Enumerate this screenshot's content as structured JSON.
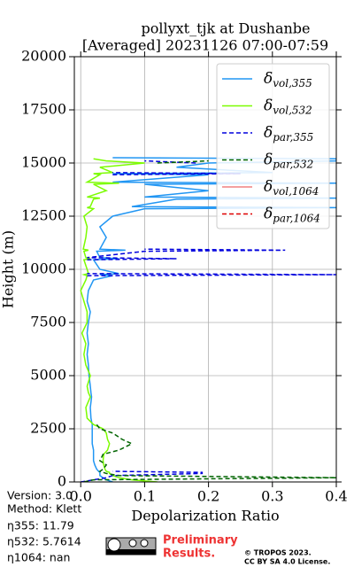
{
  "chart_data": {
    "type": "line",
    "title": "pollyxt_tjk at Dushanbe",
    "subtitle": "[Averaged] 20231126 07:00-07:59",
    "x_label": "Depolarization Ratio",
    "y_label": "Height (m)",
    "xlim": [
      -0.01,
      0.4
    ],
    "xticks": [
      0.0,
      0.1,
      0.2,
      0.3,
      0.4
    ],
    "ylim": [
      0,
      20000
    ],
    "yticks": [
      0,
      2500,
      5000,
      7500,
      10000,
      12500,
      15000,
      17500,
      20000
    ],
    "grid": true,
    "legend": "upper right",
    "y": [
      0,
      100,
      200,
      300,
      400,
      450,
      500,
      600,
      800,
      1000,
      1300,
      1500,
      1800,
      2000,
      2300,
      2500,
      2700,
      3000,
      3500,
      4000,
      4200,
      4500,
      5000,
      5500,
      6000,
      6500,
      7000,
      7500,
      8000,
      8500,
      9000,
      9500,
      9700,
      9750,
      9800,
      10000,
      10450,
      10500,
      10550,
      10850,
      10900,
      10950,
      11500,
      12000,
      12500,
      12850,
      12900,
      12950,
      13300,
      13350,
      13400,
      13700,
      14000,
      14050,
      14100,
      14450,
      14500,
      14550,
      14800,
      15000,
      15100,
      15200,
      15250
    ],
    "series": [
      {
        "name": "δvol,355",
        "color": "#2196f3",
        "linestyle": "solid",
        "values": [
          0.05,
          0.04,
          0.035,
          0.03,
          0.03,
          0.03,
          0.028,
          0.025,
          0.022,
          0.02,
          0.02,
          0.02,
          0.018,
          0.018,
          0.018,
          0.018,
          0.018,
          0.016,
          0.015,
          0.017,
          0.016,
          0.015,
          0.013,
          0.012,
          0.01,
          0.012,
          0.01,
          0.012,
          0.015,
          0.01,
          0.012,
          0.02,
          0.05,
          0.03,
          0.06,
          0.03,
          0.02,
          0.06,
          0.03,
          0.025,
          0.07,
          0.03,
          0.04,
          0.03,
          0.05,
          0.1,
          0.4,
          0.08,
          0.15,
          0.4,
          0.1,
          0.2,
          0.1,
          0.4,
          0.05,
          0.2,
          0.05,
          0.3,
          0.15,
          0.2,
          0.4,
          0.4,
          0.05
        ]
      },
      {
        "name": "δvol,532",
        "color": "#7cfc00",
        "linestyle": "solid",
        "values": [
          0.12,
          0.08,
          0.06,
          0.05,
          0.045,
          0.045,
          0.04,
          0.038,
          0.036,
          0.035,
          0.036,
          0.042,
          0.045,
          0.042,
          0.04,
          0.035,
          0.02,
          0.01,
          0.008,
          0.015,
          0.012,
          0.01,
          0.015,
          0.008,
          0.005,
          0.008,
          0.002,
          0.01,
          0.01,
          0.005,
          0.0,
          0.008,
          0.01,
          0.005,
          0.012,
          0.01,
          0.005,
          0.015,
          0.008,
          0.005,
          0.012,
          0.004,
          0.008,
          0.01,
          0.005,
          0.02,
          0.01,
          0.015,
          0.02,
          0.03,
          0.01,
          0.04,
          0.02,
          0.06,
          0.01,
          0.03,
          0.02,
          0.05,
          0.03,
          0.1,
          0.04,
          0.02,
          null
        ]
      },
      {
        "name": "δpar,355",
        "color": "#0000dd",
        "linestyle": "dashed",
        "values": [
          0.0,
          0.02,
          0.04,
          0.05,
          0.19,
          0.19,
          0.05,
          null,
          null,
          null,
          null,
          null,
          null,
          null,
          null,
          null,
          null,
          null,
          null,
          null,
          null,
          null,
          null,
          null,
          null,
          null,
          null,
          null,
          null,
          null,
          null,
          null,
          0.01,
          0.4,
          0.01,
          null,
          0.01,
          0.15,
          0.01,
          0.1,
          0.32,
          0.1,
          null,
          null,
          null,
          null,
          null,
          null,
          null,
          null,
          null,
          null,
          null,
          null,
          null,
          0.05,
          0.25,
          0.05,
          null,
          0.18,
          0.1,
          null,
          null
        ]
      },
      {
        "name": "δpar,532",
        "color": "#006400",
        "linestyle": "dashed",
        "values": [
          0.005,
          0.02,
          0.4,
          0.06,
          0.04,
          0.035,
          0.03,
          0.035,
          0.04,
          0.03,
          0.035,
          0.06,
          0.08,
          0.065,
          0.05,
          0.03,
          0.025,
          null,
          null,
          null,
          null,
          null,
          null,
          null,
          null,
          null,
          null,
          null,
          null,
          null,
          null,
          null,
          null,
          null,
          null,
          null,
          null,
          null,
          null,
          null,
          null,
          null,
          null,
          null,
          null,
          null,
          null,
          null,
          null,
          null,
          null,
          null,
          null,
          null,
          null,
          null,
          null,
          null,
          null,
          0.12,
          0.2,
          null,
          null
        ]
      },
      {
        "name": "δvol,1064",
        "color": "#f08080",
        "linestyle": "solid",
        "values": [
          null,
          null,
          null,
          null,
          null,
          null,
          null,
          null,
          null,
          null,
          null,
          null,
          null,
          null,
          null,
          null,
          null,
          null,
          null,
          null,
          null,
          null,
          null,
          null,
          null,
          null,
          null,
          null,
          null,
          null,
          null,
          null,
          null,
          null,
          null,
          null,
          null,
          null,
          null,
          null,
          null,
          null,
          null,
          null,
          null,
          null,
          null,
          null,
          null,
          null,
          null,
          null,
          null,
          null,
          null,
          null,
          null,
          null,
          null,
          null,
          null,
          null,
          null
        ]
      },
      {
        "name": "δpar,1064",
        "color": "#dd0000",
        "linestyle": "dashed",
        "values": [
          null,
          null,
          null,
          null,
          null,
          null,
          null,
          null,
          null,
          null,
          null,
          null,
          null,
          null,
          null,
          null,
          null,
          null,
          null,
          null,
          null,
          null,
          null,
          null,
          null,
          null,
          null,
          null,
          null,
          null,
          null,
          null,
          null,
          null,
          null,
          null,
          null,
          null,
          null,
          null,
          null,
          null,
          null,
          null,
          null,
          null,
          null,
          null,
          null,
          null,
          null,
          null,
          null,
          null,
          null,
          null,
          null,
          null,
          null,
          null,
          null,
          null,
          null
        ]
      }
    ]
  },
  "info": {
    "version": "Version: 3.0",
    "method": "Method: Klett",
    "eta355": "η355:  11.79",
    "eta532": "η532: 5.7614",
    "eta1064": "η1064:    nan",
    "preliminary": [
      "Preliminary",
      "Results."
    ],
    "copyright": [
      "© TROPOS 2023.",
      "CC BY SA 4.0 License."
    ]
  }
}
